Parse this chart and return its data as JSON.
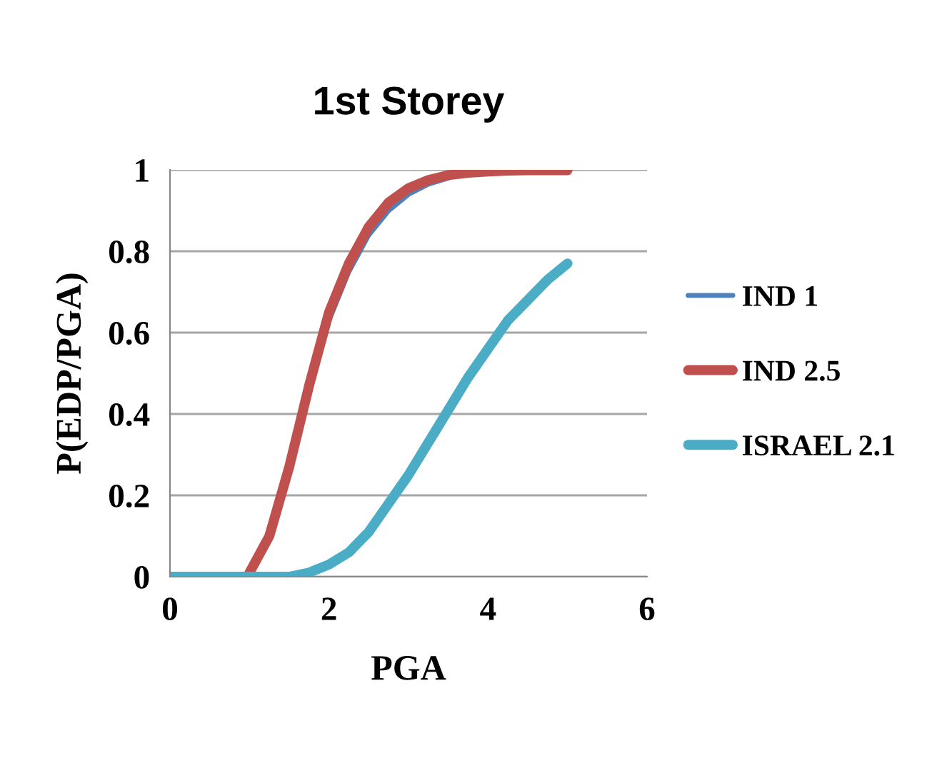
{
  "chart_data": {
    "type": "line",
    "title": "1st Storey",
    "xlabel": "PGA",
    "ylabel": "P(EDP/PGA)",
    "x": [
      0,
      0.25,
      0.5,
      0.75,
      1.0,
      1.25,
      1.5,
      1.75,
      2.0,
      2.25,
      2.5,
      2.75,
      3.0,
      3.25,
      3.5,
      3.75,
      4.0,
      4.25,
      4.5,
      4.75,
      5.0
    ],
    "series": [
      {
        "name": "IND 1",
        "color": "#4f81bd",
        "values": [
          null,
          null,
          null,
          null,
          null,
          null,
          null,
          null,
          0.63,
          0.75,
          0.84,
          0.9,
          0.94,
          0.965,
          0.98,
          null,
          null,
          null,
          null,
          null,
          null
        ]
      },
      {
        "name": "IND 2.5",
        "color": "#c0504d",
        "values": [
          null,
          null,
          null,
          null,
          0.01,
          0.1,
          0.27,
          0.47,
          0.65,
          0.77,
          0.86,
          0.92,
          0.955,
          0.975,
          0.987,
          0.993,
          0.996,
          0.998,
          0.999,
          0.999,
          0.999
        ]
      },
      {
        "name": "ISRAEL 2.1",
        "color": "#4bacc6",
        "values": [
          0,
          0,
          0,
          0,
          0,
          0,
          0,
          0.01,
          0.03,
          0.06,
          0.11,
          0.18,
          0.25,
          0.33,
          0.41,
          0.49,
          0.56,
          0.63,
          0.68,
          0.73,
          0.77
        ]
      }
    ],
    "xlim": [
      0,
      6
    ],
    "xticks": [
      0,
      2,
      4,
      6
    ],
    "ylim": [
      0,
      1
    ],
    "yticks": [
      0,
      0.2,
      0.4,
      0.6,
      0.8,
      1
    ],
    "grid": "y",
    "legend": "right",
    "line_style": "solid",
    "marker": "none"
  }
}
